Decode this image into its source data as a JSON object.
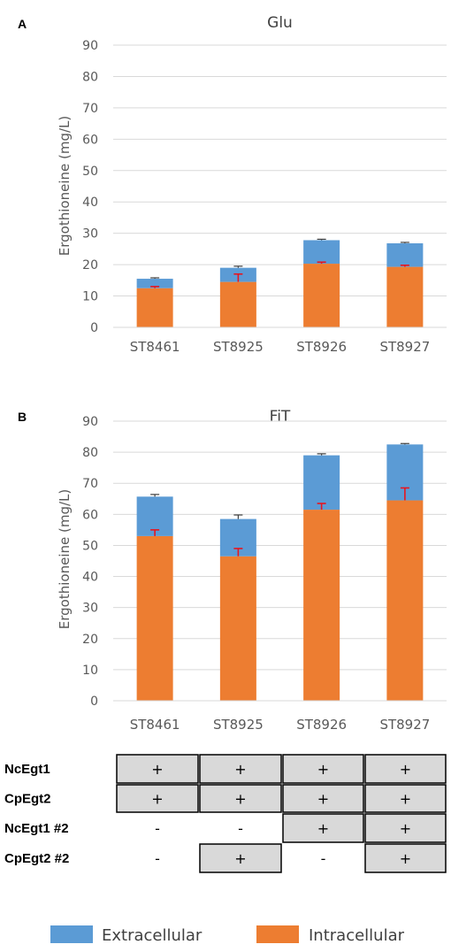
{
  "colors": {
    "extracellular": "#5B9BD5",
    "intracellular": "#ED7D31",
    "intra_error": "#E8141E",
    "total_error": "#404040",
    "grid": "#D9D9D9",
    "cell_fill": "#D9D9D9"
  },
  "chart_data": [
    {
      "panel": "A",
      "type": "bar",
      "stacked": true,
      "title": "Glu",
      "ylabel": "Ergothioneine (mg/L)",
      "ylim": [
        0,
        90
      ],
      "yticks": [
        0,
        10,
        20,
        30,
        40,
        50,
        60,
        70,
        80,
        90
      ],
      "categories": [
        "ST8461",
        "ST8925",
        "ST8926",
        "ST8927"
      ],
      "series": [
        {
          "key": "intracellular",
          "values": [
            12.5,
            14.5,
            20.3,
            19.3
          ],
          "error": [
            0.5,
            2.5,
            0.5,
            0.5
          ]
        },
        {
          "key": "extracellular",
          "values": [
            3.0,
            4.5,
            7.5,
            7.5
          ],
          "error": [
            0.3,
            0.5,
            0.3,
            0.3
          ]
        }
      ],
      "grid": true
    },
    {
      "panel": "B",
      "type": "bar",
      "stacked": true,
      "title": "FiT",
      "ylabel": "Ergothioneine (mg/L)",
      "ylim": [
        0,
        90
      ],
      "yticks": [
        0,
        10,
        20,
        30,
        40,
        50,
        60,
        70,
        80,
        90
      ],
      "categories": [
        "ST8461",
        "ST8925",
        "ST8926",
        "ST8927"
      ],
      "series": [
        {
          "key": "intracellular",
          "values": [
            53,
            46.5,
            61.5,
            64.5
          ],
          "error": [
            2,
            2.5,
            2,
            4
          ]
        },
        {
          "key": "extracellular",
          "values": [
            12.7,
            12.0,
            17.5,
            18.0
          ],
          "error": [
            0.7,
            1.3,
            0.5,
            0.3
          ]
        }
      ],
      "grid": true
    }
  ],
  "genotype_table": {
    "rows": [
      {
        "label": "NcEgt1",
        "cells": [
          "+",
          "+",
          "+",
          "+"
        ]
      },
      {
        "label": "CpEgt2",
        "cells": [
          "+",
          "+",
          "+",
          "+"
        ]
      },
      {
        "label": "NcEgt1 #2",
        "cells": [
          "-",
          "-",
          "+",
          "+"
        ]
      },
      {
        "label": "CpEgt2 #2",
        "cells": [
          "-",
          "+",
          "-",
          "+"
        ]
      }
    ]
  },
  "legend": {
    "placement": "bottom",
    "items": [
      {
        "key": "extracellular",
        "label": "Extracellular"
      },
      {
        "key": "intracellular",
        "label": "Intracellular"
      }
    ]
  }
}
